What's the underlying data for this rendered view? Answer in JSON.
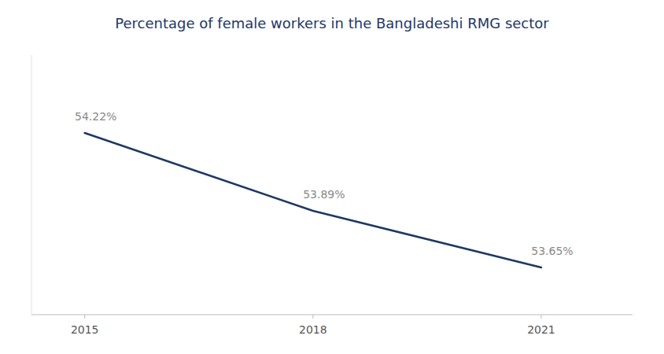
{
  "chart_data": {
    "type": "line",
    "title": "Percentage of female workers in the Bangladeshi RMG sector",
    "x": [
      2015,
      2018,
      2021
    ],
    "values": [
      54.22,
      53.89,
      53.65
    ],
    "value_labels": [
      "54.22%",
      "53.89%",
      "53.65%"
    ],
    "data_labels": true,
    "color": "#1f3864",
    "xlim": [
      2014.3,
      2022.2
    ],
    "ylim": [
      53.45,
      54.55
    ],
    "xticks": [
      2015,
      2018,
      2021
    ],
    "tick_labels": "x",
    "grid": false
  }
}
